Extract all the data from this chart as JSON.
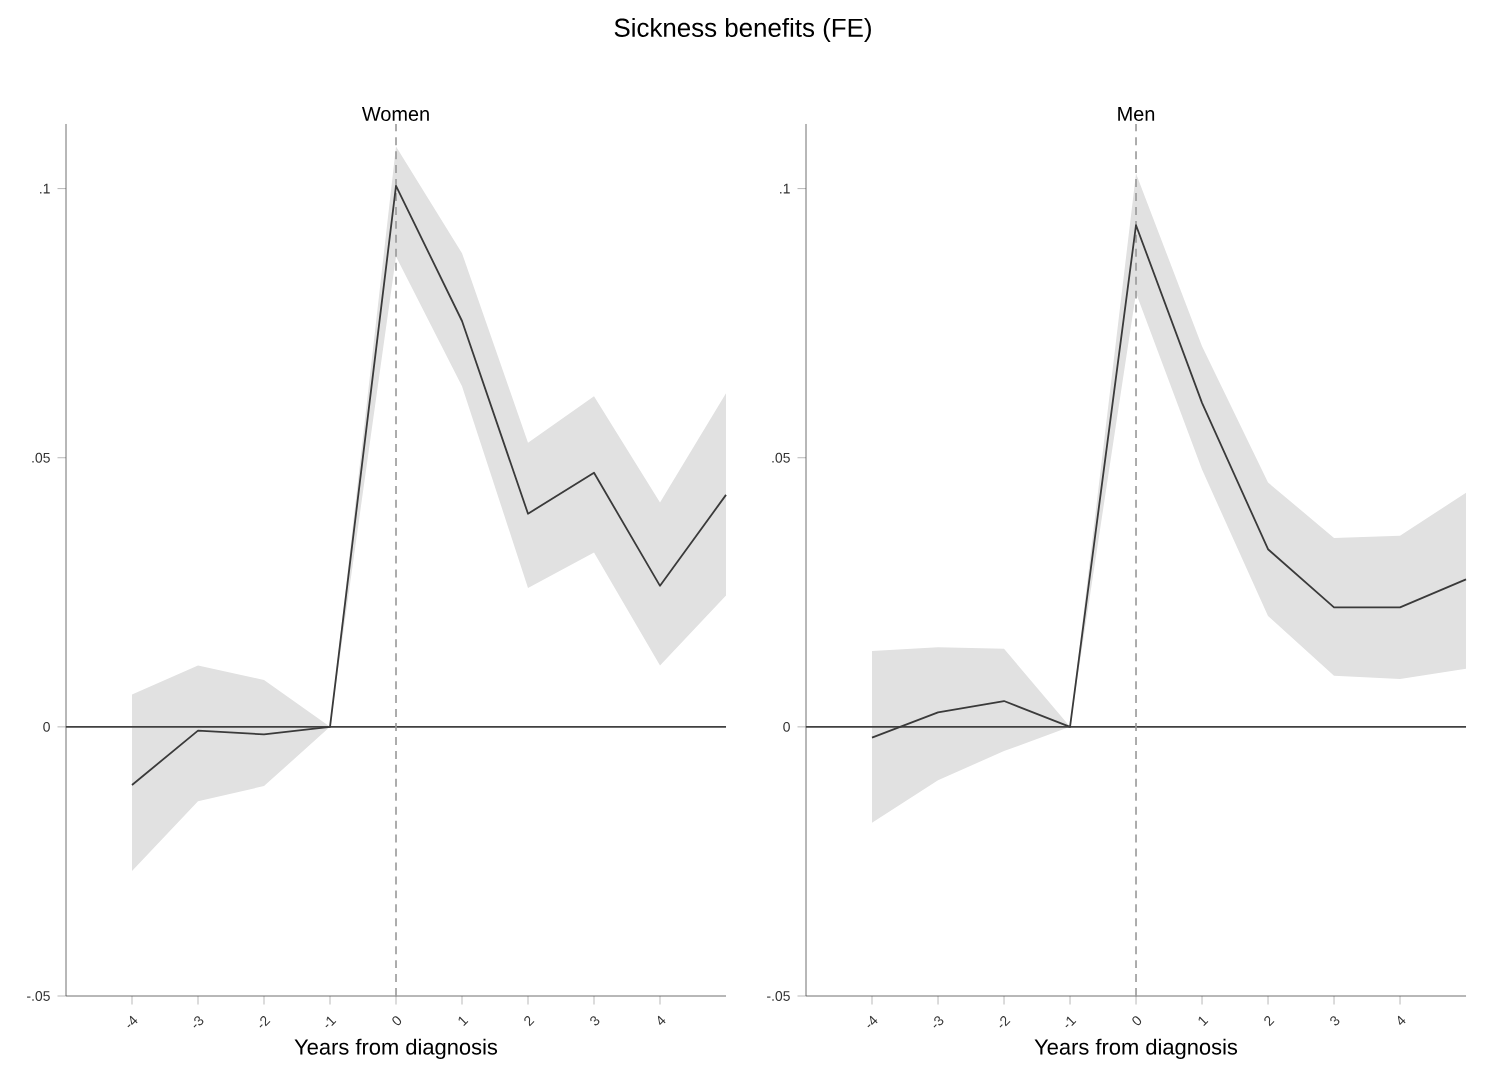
{
  "chart_data": [
    {
      "type": "line",
      "title": "Women",
      "xlabel": "Years from diagnosis",
      "annotations": [
        "Sickness benefits (FE)"
      ],
      "x": [
        -4,
        -3,
        -2,
        -1,
        0,
        1,
        2,
        3,
        4,
        5
      ],
      "series": [
        {
          "color": "#3a3a3a",
          "values": [
            -0.0108,
            -0.0007,
            -0.0014,
            0,
            0.1005,
            0.0754,
            0.0396,
            0.0472,
            0.0262,
            0.0431
          ],
          "lower": [
            -0.0268,
            -0.0138,
            -0.011,
            0,
            0.0874,
            0.0633,
            0.0258,
            0.0324,
            0.0114,
            0.0244
          ],
          "upper": [
            0.006,
            0.0114,
            0.0087,
            0,
            0.1078,
            0.088,
            0.0528,
            0.0614,
            0.0417,
            0.062
          ]
        }
      ],
      "xlim": [
        -5,
        5
      ],
      "xticks": [
        -4,
        -3,
        -2,
        -1,
        0,
        1,
        2,
        3,
        4
      ],
      "ylim": [
        -0.05,
        0.112
      ],
      "yticks": [
        {
          "value": -0.05,
          "label": "-.05"
        },
        {
          "value": 0,
          "label": "0"
        },
        {
          "value": 0.05,
          "label": ".05"
        },
        {
          "value": 0.1,
          "label": ".1"
        }
      ],
      "ref_lines": [
        {
          "axis": "y",
          "value": 0,
          "color": "#404040"
        },
        {
          "axis": "x",
          "value": 0,
          "color": "#999999",
          "line_style": "dashed"
        }
      ]
    },
    {
      "type": "line",
      "title": "Men",
      "xlabel": "Years from diagnosis",
      "x": [
        -4,
        -3,
        -2,
        -1,
        0,
        1,
        2,
        3,
        4,
        5
      ],
      "series": [
        {
          "color": "#3a3a3a",
          "values": [
            -0.002,
            0.0027,
            0.0048,
            0,
            0.0932,
            0.0602,
            0.033,
            0.0222,
            0.0222,
            0.0274
          ],
          "lower": [
            -0.0178,
            -0.0099,
            -0.0045,
            0,
            0.0806,
            0.0478,
            0.0206,
            0.0095,
            0.0089,
            0.0108
          ],
          "upper": [
            0.0141,
            0.0148,
            0.0145,
            0,
            0.1028,
            0.0707,
            0.0454,
            0.0351,
            0.0355,
            0.0435
          ]
        }
      ],
      "xlim": [
        -5,
        5
      ],
      "xticks": [
        -4,
        -3,
        -2,
        -1,
        0,
        1,
        2,
        3,
        4
      ],
      "ylim": [
        -0.05,
        0.112
      ],
      "yticks": [
        {
          "value": -0.05,
          "label": "-.05"
        },
        {
          "value": 0,
          "label": "0"
        },
        {
          "value": 0.05,
          "label": ".05"
        },
        {
          "value": 0.1,
          "label": ".1"
        }
      ],
      "ref_lines": [
        {
          "axis": "y",
          "value": 0,
          "color": "#404040"
        },
        {
          "axis": "x",
          "value": 0,
          "color": "#999999",
          "line_style": "dashed"
        }
      ]
    }
  ]
}
